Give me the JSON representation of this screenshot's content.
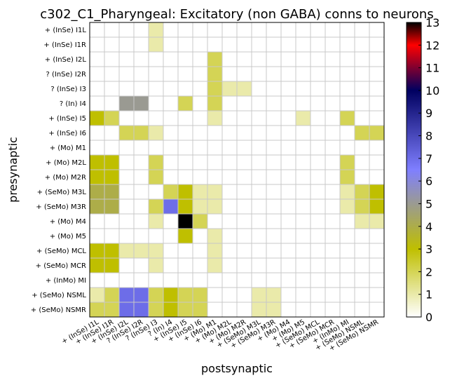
{
  "chart_data": {
    "type": "heatmap",
    "title": "c302_C1_Pharyngeal: Excitatory (non GABA) conns to neurons",
    "xlabel": "postsynaptic",
    "ylabel": "presynaptic",
    "rows": [
      "+ (InSe) I1L",
      "+ (InSe) I1R",
      "+ (InSe) I2L",
      "? (InSe) I2R",
      "? (InSe) I3",
      "? (In) I4",
      "+ (InSe) I5",
      "+ (InSe) I6",
      "+ (Mo) M1",
      "+ (Mo) M2L",
      "+ (Mo) M2R",
      "+ (SeMo) M3L",
      "+ (SeMo) M3R",
      "+ (Mo) M4",
      "+ (Mo) M5",
      "+ (SeMo) MCL",
      "+ (SeMo) MCR",
      "+ (InMo) MI",
      "+ (SeMo) NSML",
      "+ (SeMo) NSMR"
    ],
    "columns": [
      "+ (InSe) I1L",
      "+ (InSe) I1R",
      "+ (InSe) I2L",
      "? (InSe) I2R",
      "? (InSe) I3",
      "? (In) I4",
      "+ (InSe) I5",
      "+ (InSe) I6",
      "+ (Mo) M1",
      "+ (Mo) M2L",
      "+ (Mo) M2R",
      "+ (SeMo) M3L",
      "+ (SeMo) M3R",
      "+ (Mo) M4",
      "+ (Mo) M5",
      "+ (SeMo) MCL",
      "+ (SeMo) MCR",
      "+ (InMo) MI",
      "+ (SeMo) NSML",
      "+ (SeMo) NSMR"
    ],
    "values": [
      [
        0,
        0,
        0,
        0,
        1,
        0,
        0,
        0,
        0,
        0,
        0,
        0,
        0,
        0,
        0,
        0,
        0,
        0,
        0,
        0
      ],
      [
        0,
        0,
        0,
        0,
        1,
        0,
        0,
        0,
        0,
        0,
        0,
        0,
        0,
        0,
        0,
        0,
        0,
        0,
        0,
        0
      ],
      [
        0,
        0,
        0,
        0,
        0,
        0,
        0,
        0,
        2,
        0,
        0,
        0,
        0,
        0,
        0,
        0,
        0,
        0,
        0,
        0
      ],
      [
        0,
        0,
        0,
        0,
        0,
        0,
        0,
        0,
        2,
        0,
        0,
        0,
        0,
        0,
        0,
        0,
        0,
        0,
        0,
        0
      ],
      [
        0,
        0,
        0,
        0,
        0,
        0,
        0,
        0,
        2,
        1,
        1,
        0,
        0,
        0,
        0,
        0,
        0,
        0,
        0,
        0
      ],
      [
        0,
        0,
        5,
        5,
        0,
        0,
        2,
        0,
        2,
        0,
        0,
        0,
        0,
        0,
        0,
        0,
        0,
        0,
        0,
        0
      ],
      [
        3,
        2,
        0,
        0,
        0,
        0,
        0,
        0,
        1,
        0,
        0,
        0,
        0,
        0,
        1,
        0,
        0,
        2,
        0,
        0
      ],
      [
        0,
        0,
        2,
        2,
        1,
        0,
        0,
        0,
        0,
        0,
        0,
        0,
        0,
        0,
        0,
        0,
        0,
        0,
        2,
        2
      ],
      [
        0,
        0,
        0,
        0,
        0,
        0,
        0,
        0,
        0,
        0,
        0,
        0,
        0,
        0,
        0,
        0,
        0,
        0,
        0,
        0
      ],
      [
        3,
        3,
        0,
        0,
        2,
        0,
        0,
        0,
        0,
        0,
        0,
        0,
        0,
        0,
        0,
        0,
        0,
        2,
        0,
        0
      ],
      [
        3,
        3,
        0,
        0,
        2,
        0,
        0,
        0,
        0,
        0,
        0,
        0,
        0,
        0,
        0,
        0,
        0,
        2,
        0,
        0
      ],
      [
        4,
        4,
        0,
        0,
        0,
        2,
        3,
        1,
        1,
        0,
        0,
        0,
        0,
        0,
        0,
        0,
        0,
        1,
        2,
        3
      ],
      [
        4,
        4,
        0,
        0,
        2,
        7,
        3,
        1,
        1,
        0,
        0,
        0,
        0,
        0,
        0,
        0,
        0,
        1,
        2,
        3
      ],
      [
        0,
        0,
        0,
        0,
        1,
        0,
        13,
        2,
        0,
        0,
        0,
        0,
        0,
        0,
        0,
        0,
        0,
        0,
        1,
        1
      ],
      [
        0,
        0,
        0,
        0,
        0,
        0,
        3,
        0,
        1,
        0,
        0,
        0,
        0,
        0,
        0,
        0,
        0,
        0,
        0,
        0
      ],
      [
        3,
        3,
        1,
        1,
        1,
        0,
        0,
        0,
        1,
        0,
        0,
        0,
        0,
        0,
        0,
        0,
        0,
        0,
        0,
        0
      ],
      [
        3,
        3,
        0,
        0,
        1,
        0,
        0,
        0,
        1,
        0,
        0,
        0,
        0,
        0,
        0,
        0,
        0,
        0,
        0,
        0
      ],
      [
        0,
        0,
        0,
        0,
        0,
        0,
        0,
        0,
        0,
        0,
        0,
        0,
        0,
        0,
        0,
        0,
        0,
        0,
        0,
        0
      ],
      [
        1,
        2,
        7,
        7,
        2,
        3,
        2,
        2,
        0,
        0,
        0,
        1,
        1,
        0,
        0,
        0,
        0,
        0,
        0,
        0
      ],
      [
        2,
        2,
        7,
        7,
        2,
        3,
        2,
        2,
        0,
        0,
        0,
        1,
        1,
        0,
        0,
        0,
        0,
        0,
        0,
        0
      ]
    ],
    "colorbar": {
      "min": 0,
      "max": 13,
      "ticks": [
        "0",
        "1",
        "2",
        "3",
        "4",
        "5",
        "6",
        "7",
        "8",
        "9",
        "10",
        "11",
        "12",
        "13"
      ],
      "stops": [
        "#ffffff",
        "#bfbf00",
        "#7f7fff",
        "#000060",
        "#ff0000",
        "#000000"
      ],
      "stop_values": [
        0,
        3,
        6.5,
        10,
        12,
        13
      ]
    },
    "grid": true
  }
}
